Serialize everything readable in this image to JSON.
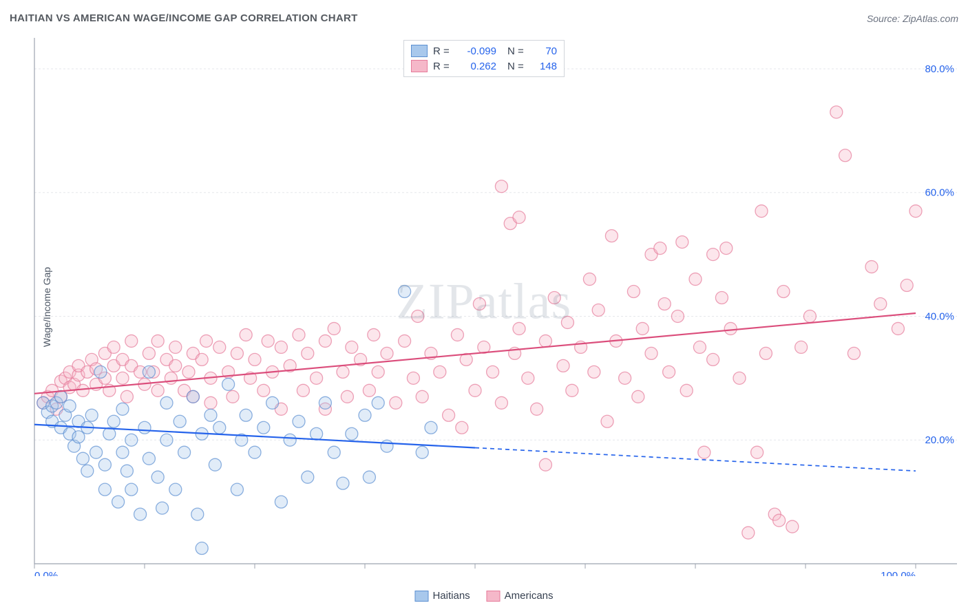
{
  "header": {
    "title": "HAITIAN VS AMERICAN WAGE/INCOME GAP CORRELATION CHART",
    "source_prefix": "Source: ",
    "source_name": "ZipAtlas.com"
  },
  "chart": {
    "type": "scatter",
    "y_axis_label": "Wage/Income Gap",
    "background_color": "#ffffff",
    "grid_color": "#e5e7eb",
    "axis_color": "#9ca3af",
    "tick_label_color": "#2563eb",
    "xlim": [
      0,
      100
    ],
    "ylim": [
      0,
      85
    ],
    "x_ticks": [
      0,
      12.5,
      25,
      37.5,
      50,
      62.5,
      75,
      87.5,
      100
    ],
    "x_tick_labels": {
      "0": "0.0%",
      "100": "100.0%"
    },
    "y_ticks": [
      20,
      40,
      60,
      80
    ],
    "y_tick_labels": {
      "20": "20.0%",
      "40": "40.0%",
      "60": "60.0%",
      "80": "80.0%"
    },
    "marker_radius": 9,
    "marker_opacity": 0.35,
    "marker_stroke_opacity": 0.7,
    "line_width": 2.2,
    "watermark_text": "ZIPatlas",
    "series": [
      {
        "name": "Haitians",
        "color_fill": "#a8c8ec",
        "color_stroke": "#5b8fd1",
        "color_solid": "#2563eb",
        "r_value": "-0.099",
        "n_value": "70",
        "regression": {
          "x1": 0,
          "y1": 22.5,
          "x2": 100,
          "y2": 15,
          "dash_after_x": 50
        },
        "points": [
          [
            1,
            26
          ],
          [
            1.5,
            24.5
          ],
          [
            2,
            25.5
          ],
          [
            2,
            23
          ],
          [
            2.5,
            26
          ],
          [
            3,
            27
          ],
          [
            3,
            22
          ],
          [
            3.5,
            24
          ],
          [
            4,
            21
          ],
          [
            4,
            25.5
          ],
          [
            4.5,
            19
          ],
          [
            5,
            20.5
          ],
          [
            5,
            23
          ],
          [
            5.5,
            17
          ],
          [
            6,
            22
          ],
          [
            6,
            15
          ],
          [
            6.5,
            24
          ],
          [
            7,
            18
          ],
          [
            7.5,
            31
          ],
          [
            8,
            16
          ],
          [
            8,
            12
          ],
          [
            8.5,
            21
          ],
          [
            9,
            23
          ],
          [
            9.5,
            10
          ],
          [
            10,
            18
          ],
          [
            10,
            25
          ],
          [
            10.5,
            15
          ],
          [
            11,
            12
          ],
          [
            11,
            20
          ],
          [
            12,
            8
          ],
          [
            12.5,
            22
          ],
          [
            13,
            17
          ],
          [
            13,
            31
          ],
          [
            14,
            14
          ],
          [
            14.5,
            9
          ],
          [
            15,
            26
          ],
          [
            15,
            20
          ],
          [
            16,
            12
          ],
          [
            16.5,
            23
          ],
          [
            17,
            18
          ],
          [
            18,
            27
          ],
          [
            18.5,
            8
          ],
          [
            19,
            21
          ],
          [
            19,
            2.5
          ],
          [
            20,
            24
          ],
          [
            20.5,
            16
          ],
          [
            21,
            22
          ],
          [
            22,
            29
          ],
          [
            23,
            12
          ],
          [
            23.5,
            20
          ],
          [
            24,
            24
          ],
          [
            25,
            18
          ],
          [
            26,
            22
          ],
          [
            27,
            26
          ],
          [
            28,
            10
          ],
          [
            29,
            20
          ],
          [
            30,
            23
          ],
          [
            31,
            14
          ],
          [
            32,
            21
          ],
          [
            33,
            26
          ],
          [
            34,
            18
          ],
          [
            35,
            13
          ],
          [
            36,
            21
          ],
          [
            37.5,
            24
          ],
          [
            38,
            14
          ],
          [
            39,
            26
          ],
          [
            40,
            19
          ],
          [
            42,
            44
          ],
          [
            44,
            18
          ],
          [
            45,
            22
          ]
        ]
      },
      {
        "name": "Americans",
        "color_fill": "#f5b8c9",
        "color_stroke": "#e67a9a",
        "color_solid": "#db4d7b",
        "r_value": "0.262",
        "n_value": "148",
        "regression": {
          "x1": 0,
          "y1": 27.5,
          "x2": 100,
          "y2": 40.5,
          "dash_after_x": null
        },
        "points": [
          [
            1,
            26
          ],
          [
            1.5,
            27
          ],
          [
            2,
            28
          ],
          [
            2.5,
            25
          ],
          [
            3,
            29.5
          ],
          [
            3,
            27
          ],
          [
            3.5,
            30
          ],
          [
            4,
            28.5
          ],
          [
            4,
            31
          ],
          [
            4.5,
            29
          ],
          [
            5,
            30.5
          ],
          [
            5,
            32
          ],
          [
            5.5,
            28
          ],
          [
            6,
            31
          ],
          [
            6.5,
            33
          ],
          [
            7,
            29
          ],
          [
            7,
            31.5
          ],
          [
            8,
            30
          ],
          [
            8,
            34
          ],
          [
            8.5,
            28
          ],
          [
            9,
            32
          ],
          [
            9,
            35
          ],
          [
            10,
            30
          ],
          [
            10,
            33
          ],
          [
            10.5,
            27
          ],
          [
            11,
            32
          ],
          [
            11,
            36
          ],
          [
            12,
            31
          ],
          [
            12.5,
            29
          ],
          [
            13,
            34
          ],
          [
            13.5,
            31
          ],
          [
            14,
            36
          ],
          [
            14,
            28
          ],
          [
            15,
            33
          ],
          [
            15.5,
            30
          ],
          [
            16,
            32
          ],
          [
            16,
            35
          ],
          [
            17,
            28
          ],
          [
            17.5,
            31
          ],
          [
            18,
            34
          ],
          [
            18,
            27
          ],
          [
            19,
            33
          ],
          [
            19.5,
            36
          ],
          [
            20,
            30
          ],
          [
            20,
            26
          ],
          [
            21,
            35
          ],
          [
            22,
            31
          ],
          [
            22.5,
            27
          ],
          [
            23,
            34
          ],
          [
            24,
            37
          ],
          [
            24.5,
            30
          ],
          [
            25,
            33
          ],
          [
            26,
            28
          ],
          [
            26.5,
            36
          ],
          [
            27,
            31
          ],
          [
            28,
            35
          ],
          [
            28,
            25
          ],
          [
            29,
            32
          ],
          [
            30,
            37
          ],
          [
            30.5,
            28
          ],
          [
            31,
            34
          ],
          [
            32,
            30
          ],
          [
            33,
            36
          ],
          [
            33,
            25
          ],
          [
            34,
            38
          ],
          [
            35,
            31
          ],
          [
            35.5,
            27
          ],
          [
            36,
            35
          ],
          [
            37,
            33
          ],
          [
            38,
            28
          ],
          [
            38.5,
            37
          ],
          [
            39,
            31
          ],
          [
            40,
            34
          ],
          [
            41,
            26
          ],
          [
            42,
            36
          ],
          [
            43,
            30
          ],
          [
            43.5,
            40
          ],
          [
            44,
            27
          ],
          [
            45,
            34
          ],
          [
            46,
            31
          ],
          [
            47,
            24
          ],
          [
            48,
            37
          ],
          [
            48.5,
            22
          ],
          [
            49,
            33
          ],
          [
            50,
            28
          ],
          [
            50.5,
            42
          ],
          [
            51,
            35
          ],
          [
            52,
            31
          ],
          [
            53,
            26
          ],
          [
            53,
            61
          ],
          [
            54,
            55
          ],
          [
            54.5,
            34
          ],
          [
            55,
            38
          ],
          [
            55,
            56
          ],
          [
            56,
            30
          ],
          [
            57,
            25
          ],
          [
            58,
            36
          ],
          [
            58,
            16
          ],
          [
            59,
            43
          ],
          [
            60,
            32
          ],
          [
            60.5,
            39
          ],
          [
            61,
            28
          ],
          [
            62,
            35
          ],
          [
            63,
            46
          ],
          [
            63.5,
            31
          ],
          [
            64,
            41
          ],
          [
            65,
            23
          ],
          [
            65.5,
            53
          ],
          [
            66,
            36
          ],
          [
            67,
            30
          ],
          [
            68,
            44
          ],
          [
            68.5,
            27
          ],
          [
            69,
            38
          ],
          [
            70,
            50
          ],
          [
            70,
            34
          ],
          [
            71,
            51
          ],
          [
            71.5,
            42
          ],
          [
            72,
            31
          ],
          [
            73,
            40
          ],
          [
            73.5,
            52
          ],
          [
            74,
            28
          ],
          [
            75,
            46
          ],
          [
            75.5,
            35
          ],
          [
            76,
            18
          ],
          [
            77,
            33
          ],
          [
            77,
            50
          ],
          [
            78,
            43
          ],
          [
            78.5,
            51
          ],
          [
            79,
            38
          ],
          [
            80,
            30
          ],
          [
            81,
            5
          ],
          [
            82,
            18
          ],
          [
            82.5,
            57
          ],
          [
            83,
            34
          ],
          [
            84,
            8
          ],
          [
            84.5,
            7
          ],
          [
            85,
            44
          ],
          [
            86,
            6
          ],
          [
            87,
            35
          ],
          [
            88,
            40
          ],
          [
            91,
            73
          ],
          [
            92,
            66
          ],
          [
            93,
            34
          ],
          [
            95,
            48
          ],
          [
            96,
            42
          ],
          [
            98,
            38
          ],
          [
            99,
            45
          ],
          [
            100,
            57
          ]
        ]
      }
    ],
    "legend_top": {
      "r_label": "R =",
      "n_label": "N ="
    },
    "legend_bottom": [
      {
        "label": "Haitians",
        "fill": "#a8c8ec",
        "stroke": "#5b8fd1"
      },
      {
        "label": "Americans",
        "fill": "#f5b8c9",
        "stroke": "#e67a9a"
      }
    ]
  }
}
